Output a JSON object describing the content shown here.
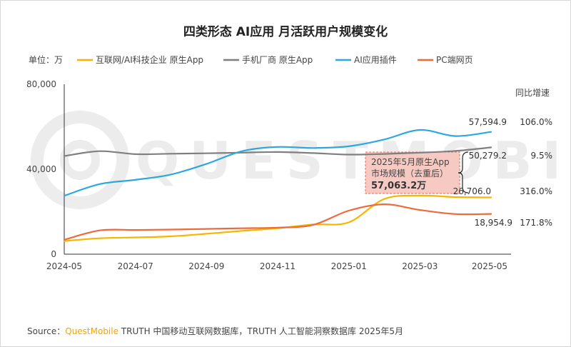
{
  "chart_data": {
    "type": "line",
    "title": "四类形态 AI应用 月活跃用户规模变化",
    "unit_label": "单位：万",
    "yoy_header": "同比增速",
    "x": [
      "2024-05",
      "2024-06",
      "2024-07",
      "2024-08",
      "2024-09",
      "2024-10",
      "2024-11",
      "2024-12",
      "2025-01",
      "2025-02",
      "2025-03",
      "2025-04",
      "2025-05"
    ],
    "x_tick_labels": [
      "2024-05",
      "2024-07",
      "2024-09",
      "2024-11",
      "2025-01",
      "2025-03",
      "2025-05"
    ],
    "y_tick_labels": [
      "0",
      "40,000",
      "80,000"
    ],
    "ylim": [
      0,
      80000
    ],
    "series": [
      {
        "name": "互联网/AI科技企业 原生App",
        "color": "#f7b500",
        "values": [
          6200,
          7500,
          7900,
          8400,
          9600,
          11000,
          12200,
          14000,
          15000,
          26000,
          27600,
          26900,
          26706.0
        ],
        "end_label": "26,706.0",
        "yoy": "316.0%"
      },
      {
        "name": "手机厂商 原生App",
        "color": "#7f7f7f",
        "values": [
          46200,
          48500,
          47100,
          47300,
          47500,
          47800,
          48100,
          47600,
          46900,
          47200,
          47800,
          48600,
          50279.2
        ],
        "end_label": "50,279.2",
        "yoy": "9.5%"
      },
      {
        "name": "AI应用插件",
        "color": "#2da7e0",
        "values": [
          27500,
          33000,
          35000,
          37500,
          42500,
          48500,
          50500,
          50000,
          50800,
          54000,
          58500,
          55600,
          57594.9
        ],
        "end_label": "57,594.9",
        "yoy": "106.0%"
      },
      {
        "name": "PC端网页",
        "color": "#ef6a3a",
        "values": [
          6800,
          11200,
          11400,
          11600,
          11900,
          12200,
          12500,
          13800,
          20500,
          23500,
          20800,
          18900,
          18954.9
        ],
        "end_label": "18,954.9",
        "yoy": "171.8%"
      }
    ],
    "annotation": {
      "line1": "2025年5月原生App",
      "line2": "市场规模（去重后）",
      "value": "57,063.2万"
    },
    "source_prefix": "Source：",
    "source_brand": "QuestMobile",
    "source_suffix": " TRUTH 中国移动互联网数据库，TRUTH 人工智能洞察数据库 2025年5月",
    "watermark": "QUESTMOBILE"
  }
}
